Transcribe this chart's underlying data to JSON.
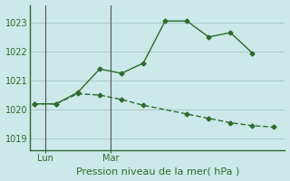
{
  "line1_x": [
    0,
    1,
    2,
    3,
    4,
    5,
    6,
    7,
    8,
    9,
    10
  ],
  "line1_y": [
    1020.2,
    1020.2,
    1020.6,
    1021.4,
    1021.25,
    1021.6,
    1023.05,
    1023.05,
    1022.5,
    1022.65,
    1021.95
  ],
  "line2_x": [
    0,
    1,
    2,
    3,
    4,
    5,
    7,
    8,
    9,
    10,
    11
  ],
  "line2_y": [
    1020.2,
    1020.2,
    1020.55,
    1020.5,
    1020.35,
    1020.15,
    1019.85,
    1019.7,
    1019.55,
    1019.45,
    1019.4
  ],
  "color": "#2d6a2d",
  "bg_color": "#cce8e8",
  "grid_color": "#aac8c8",
  "xlabel": "Pression niveau de la mer( hPa )",
  "yticks": [
    1019,
    1020,
    1021,
    1022,
    1023
  ],
  "xtick_labels": [
    "Lun",
    "Mar"
  ],
  "xtick_positions": [
    0.5,
    3.5
  ],
  "vline_x": [
    0.5,
    3.5
  ],
  "ylim": [
    1018.6,
    1023.6
  ],
  "xlim": [
    -0.2,
    11.5
  ],
  "xlabel_fontsize": 8,
  "tick_fontsize": 7,
  "title_fontsize": 7,
  "spine_color": "#336633",
  "vline_color": "#555555"
}
